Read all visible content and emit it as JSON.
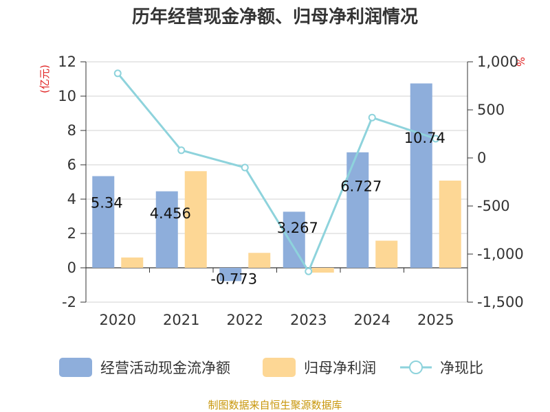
{
  "chart_data": {
    "type": "bar",
    "title": "历年经营现金净额、归母净利润情况",
    "categories": [
      "2020",
      "2021",
      "2022",
      "2023",
      "2024",
      "2025"
    ],
    "left_axis": {
      "unit": "(亿元)",
      "ylim": [
        -2,
        12
      ],
      "ticks": [
        -2,
        0,
        2,
        4,
        6,
        8,
        10,
        12
      ]
    },
    "right_axis": {
      "unit": "%",
      "ylim": [
        -1500,
        1000
      ],
      "ticks": [
        -1500,
        -1000,
        -500,
        0,
        500,
        1000
      ],
      "tick_labels": [
        "-1,500",
        "-1,000",
        "-500",
        "0",
        "500",
        "1,000"
      ]
    },
    "series": [
      {
        "name": "经营活动现金流净额",
        "kind": "bar",
        "axis": "left",
        "color": "#8eaedb",
        "values": [
          5.34,
          4.456,
          -0.773,
          3.267,
          6.727,
          10.74
        ],
        "labels": [
          "5.34",
          "4.456",
          "-0.773",
          "3.267",
          "6.727",
          "10.74"
        ]
      },
      {
        "name": "归母净利润",
        "kind": "bar",
        "axis": "left",
        "color": "#fdd795",
        "values": [
          0.6,
          5.63,
          0.87,
          -0.28,
          1.58,
          5.08
        ]
      },
      {
        "name": "净现比",
        "kind": "line",
        "axis": "right",
        "color": "#8ed3dc",
        "values": [
          880,
          80,
          -100,
          -1180,
          420,
          200
        ]
      }
    ],
    "grid": true,
    "legend_position": "bottom"
  },
  "source_text": "制图数据来自恒生聚源数据库",
  "colors": {
    "axis": "#333333",
    "grid": "#d0d0d0",
    "unit_red": "#e02020",
    "source": "#c8960a"
  }
}
